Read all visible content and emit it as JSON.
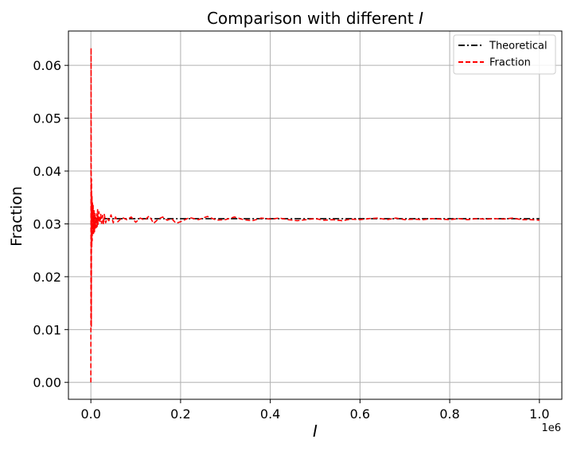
{
  "chart_data": {
    "type": "line",
    "title": "Comparison with different I",
    "title_prefix": "Comparison with different ",
    "title_symbol": "I",
    "xlabel": "I",
    "ylabel": "Fraction",
    "x_offset_text": "1e6",
    "xlim": [
      -50000,
      1050000
    ],
    "ylim": [
      -0.0032,
      0.0665
    ],
    "x_ticks": [
      0,
      200000,
      400000,
      600000,
      800000,
      1000000
    ],
    "x_tick_labels": [
      "0.0",
      "0.2",
      "0.4",
      "0.6",
      "0.8",
      "1.0"
    ],
    "y_ticks": [
      0.0,
      0.01,
      0.02,
      0.03,
      0.04,
      0.05,
      0.06
    ],
    "y_tick_labels": [
      "0.00",
      "0.01",
      "0.02",
      "0.03",
      "0.04",
      "0.05",
      "0.06"
    ],
    "grid": true,
    "legend_position": "top-right",
    "series": [
      {
        "name": "Theoretical",
        "color": "#000000",
        "style": "dash-dot",
        "x": [
          0,
          1000000
        ],
        "y": [
          0.03098,
          0.03098
        ]
      },
      {
        "name": "Fraction",
        "color": "#ff0000",
        "style": "dashed",
        "x": [
          0,
          500,
          1000,
          1500,
          2000,
          2500,
          3000,
          3500,
          4000,
          5000,
          6000,
          7000,
          8000,
          9000,
          10000,
          11000,
          12000,
          13000,
          14000,
          15000,
          16000,
          18000,
          20000,
          22000,
          24000,
          26000,
          28000,
          30000,
          33000,
          36000,
          40000,
          45000,
          50000,
          55000,
          60000,
          70000,
          80000,
          90000,
          100000,
          110000,
          120000,
          130000,
          140000,
          150000,
          160000,
          170000,
          180000,
          190000,
          200000,
          220000,
          240000,
          260000,
          280000,
          300000,
          320000,
          340000,
          360000,
          380000,
          400000,
          420000,
          440000,
          460000,
          480000,
          500000,
          520000,
          540000,
          560000,
          580000,
          600000,
          620000,
          640000,
          660000,
          680000,
          700000,
          720000,
          740000,
          760000,
          780000,
          800000,
          820000,
          840000,
          860000,
          880000,
          900000,
          920000,
          940000,
          960000,
          980000,
          1000000
        ],
        "y": [
          0.0,
          0.0633,
          0.0105,
          0.0385,
          0.0255,
          0.0352,
          0.0268,
          0.0342,
          0.0282,
          0.0335,
          0.0282,
          0.0325,
          0.0285,
          0.0322,
          0.0292,
          0.0315,
          0.0293,
          0.0319,
          0.0295,
          0.0327,
          0.0299,
          0.0323,
          0.0302,
          0.0318,
          0.0301,
          0.0316,
          0.0299,
          0.0318,
          0.0302,
          0.0311,
          0.0306,
          0.0317,
          0.0302,
          0.0313,
          0.0304,
          0.0312,
          0.0308,
          0.0313,
          0.0303,
          0.0311,
          0.0307,
          0.0315,
          0.0301,
          0.0309,
          0.0313,
          0.0307,
          0.031,
          0.0301,
          0.0304,
          0.0312,
          0.0308,
          0.0314,
          0.0307,
          0.0308,
          0.0313,
          0.0308,
          0.0306,
          0.0311,
          0.0309,
          0.0311,
          0.0308,
          0.0306,
          0.0308,
          0.031,
          0.0307,
          0.0308,
          0.0306,
          0.0309,
          0.0308,
          0.031,
          0.0311,
          0.0308,
          0.0311,
          0.0308,
          0.0309,
          0.0308,
          0.031,
          0.0309,
          0.0308,
          0.031,
          0.0308,
          0.031,
          0.0309,
          0.031,
          0.0309,
          0.0311,
          0.0308,
          0.0308,
          0.0307
        ]
      }
    ]
  }
}
